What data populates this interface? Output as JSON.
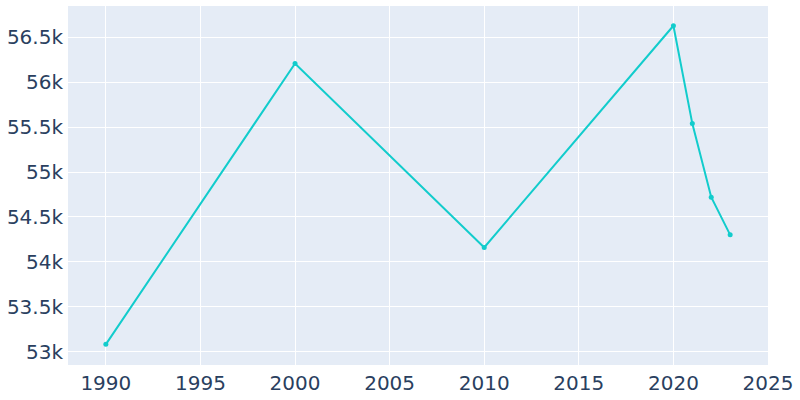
{
  "chart_data": {
    "type": "line",
    "x": [
      1990,
      2000,
      2010,
      2020,
      2021,
      2022,
      2023
    ],
    "values": [
      53080,
      56210,
      54160,
      56630,
      55540,
      54720,
      54300
    ],
    "color": "#12cccc",
    "marker": "circle",
    "xlim": [
      1988,
      2025
    ],
    "xticks": [
      1990,
      1995,
      2000,
      2005,
      2010,
      2015,
      2020,
      2025
    ],
    "ylim": [
      52850,
      56850
    ],
    "yticks": [
      {
        "value": 53000,
        "label": "53k"
      },
      {
        "value": 53500,
        "label": "53.5k"
      },
      {
        "value": 54000,
        "label": "54k"
      },
      {
        "value": 54500,
        "label": "54.5k"
      },
      {
        "value": 55000,
        "label": "55k"
      },
      {
        "value": 55500,
        "label": "55.5k"
      },
      {
        "value": 56000,
        "label": "56k"
      },
      {
        "value": 56500,
        "label": "56.5k"
      }
    ],
    "grid": true
  }
}
